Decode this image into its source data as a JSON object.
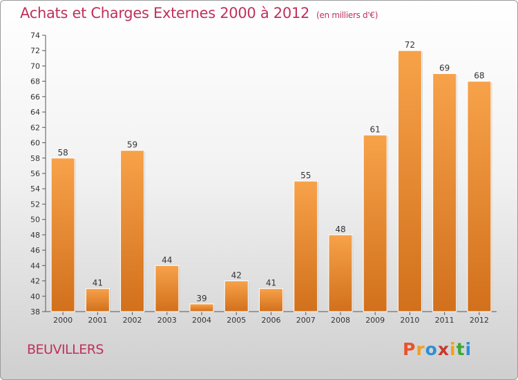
{
  "title": "Achats et Charges Externes 2000 à 2012",
  "subtitle": "(en milliers d'€)",
  "place_name": "BEUVILLERS",
  "logo": {
    "text": "Proxiti",
    "letters": [
      "P",
      "r",
      "o",
      "x",
      "i",
      "t",
      "i"
    ],
    "colors": [
      "#e8542a",
      "#f0a020",
      "#2e8fd6",
      "#c8382c",
      "#f0a020",
      "#3aaa35",
      "#2e8fd6"
    ]
  },
  "colors": {
    "bar_light": "#f7a24a",
    "bar_dark": "#d2701c",
    "title": "#c0305a"
  },
  "chart_data": {
    "type": "bar",
    "title": "Achats et Charges Externes 2000 à 2012",
    "subtitle": "(en milliers d'€)",
    "categories": [
      "2000",
      "2001",
      "2002",
      "2003",
      "2004",
      "2005",
      "2006",
      "2007",
      "2008",
      "2009",
      "2010",
      "2011",
      "2012"
    ],
    "values": [
      58,
      41,
      59,
      44,
      39,
      42,
      41,
      55,
      48,
      61,
      72,
      69,
      68
    ],
    "ylim": [
      38,
      74
    ],
    "yticks": [
      38,
      40,
      42,
      44,
      46,
      48,
      50,
      52,
      54,
      56,
      58,
      60,
      62,
      64,
      66,
      68,
      70,
      72,
      74
    ],
    "grid": false,
    "data_labels": true
  }
}
